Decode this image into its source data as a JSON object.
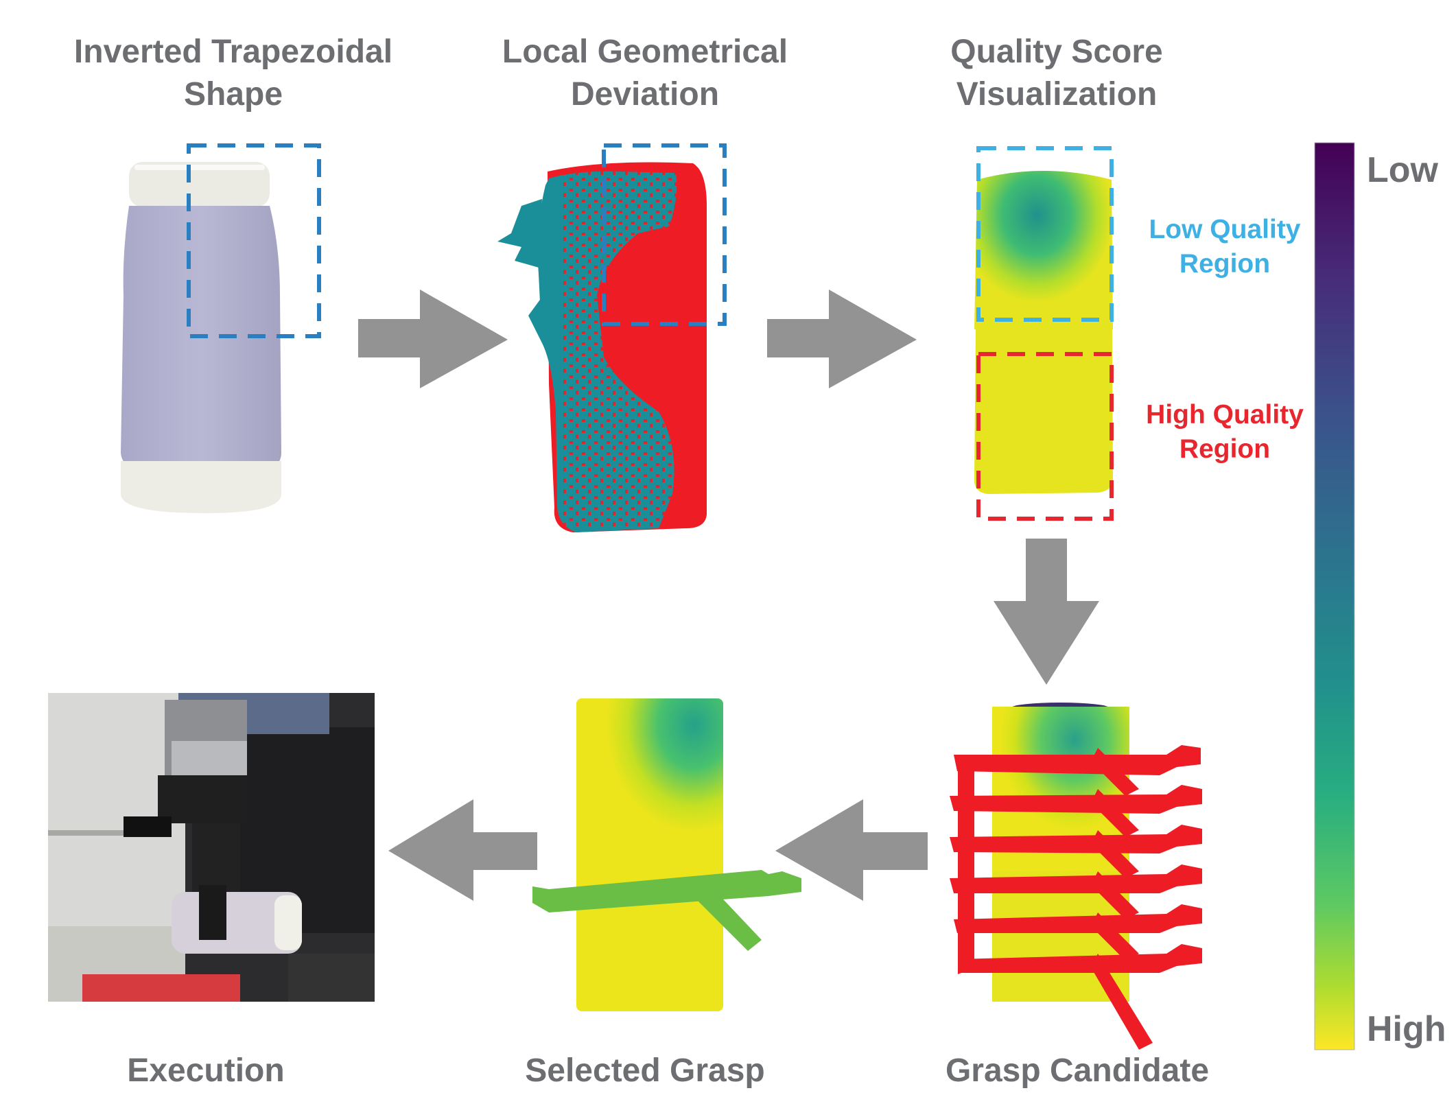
{
  "panels": {
    "inverted": {
      "line1": "Inverted Trapezoidal",
      "line2": "Shape"
    },
    "deviation": {
      "line1": "Local Geometrical",
      "line2": "Deviation"
    },
    "quality": {
      "line1": "Quality Score",
      "line2": "Visualization"
    },
    "execution": {
      "label": "Execution"
    },
    "selected": {
      "label": "Selected Grasp"
    },
    "candidate": {
      "label": "Grasp Candidate"
    }
  },
  "regions": {
    "low": {
      "line1": "Low Quality",
      "line2": "Region",
      "color": "#3fb0e4"
    },
    "high": {
      "line1": "High Quality",
      "line2": "Region",
      "color": "#e8262d"
    }
  },
  "colorbar": {
    "top_label": "Low",
    "bottom_label": "High"
  },
  "colors": {
    "arrow": "#939393",
    "grasp_red": "#ee1c24",
    "grasp_green": "#6abd45",
    "teal": "#1a8f99",
    "box_blue": "#2a7fc1"
  }
}
